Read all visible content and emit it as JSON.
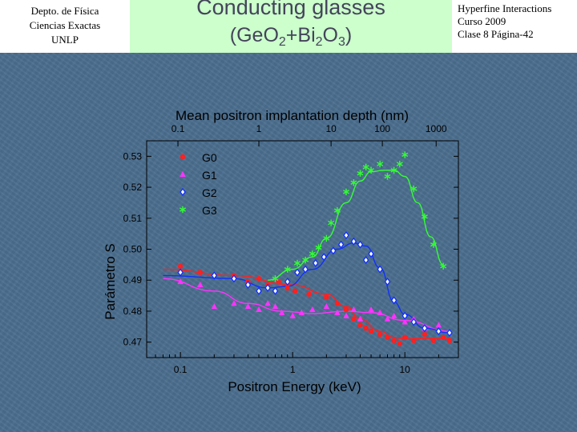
{
  "header": {
    "left_lines": [
      "Depto. de Física",
      "Ciencias Exactas",
      "UNLP"
    ],
    "title_line1": "Conducting glasses",
    "title_formula": {
      "a": "(GeO",
      "s1": "2",
      "b": "+Bi",
      "s2": "2",
      "c": "O",
      "s3": "3",
      "d": ")"
    },
    "right_lines": [
      "Hyperfine Interactions",
      "Curso 2009",
      "Clase 8  Página-42"
    ]
  },
  "colors": {
    "background": "#4b6e8e",
    "title_band": "#ccffcc",
    "G0": "#ff2020",
    "G1": "#ff33ff",
    "G2": "#1030ff",
    "G3": "#33ff33"
  },
  "chart_data": {
    "type": "scatter",
    "title": "Mean positron implantation depth (nm)",
    "xlabel": "Positron Energy (keV)",
    "ylabel": "Parámetro S",
    "xscale": "log",
    "xlim": [
      0.05,
      30
    ],
    "ylim": [
      0.465,
      0.535
    ],
    "x_ticks": [
      0.1,
      1,
      10
    ],
    "x_tick_labels": [
      "0.1",
      "1",
      "10"
    ],
    "y_ticks": [
      0.47,
      0.48,
      0.49,
      0.5,
      0.51,
      0.52,
      0.53
    ],
    "y_tick_labels": [
      "0.47",
      "0.48",
      "0.49",
      "0.50",
      "0.51",
      "0.52",
      "0.53"
    ],
    "top_axis": {
      "label": "Mean positron implantation depth (nm)",
      "ticks_nm": [
        0.1,
        1,
        10,
        100,
        1000
      ],
      "tick_labels": [
        "0.1",
        "1",
        "10",
        "100",
        "1000"
      ],
      "at_energy_keV": [
        0.095,
        0.5,
        2.2,
        6.3,
        19.0
      ]
    },
    "legend_position": "top-left",
    "series": [
      {
        "name": "G0",
        "marker": "circle",
        "x": [
          0.1,
          0.15,
          0.3,
          0.4,
          0.5,
          0.6,
          0.75,
          0.9,
          1.05,
          1.4,
          2.0,
          2.5,
          3.0,
          3.5,
          4.0,
          4.5,
          5.0,
          6.0,
          7.0,
          8.0,
          9.0,
          10.0,
          12.0,
          15.0,
          18.0,
          22.0,
          25.0
        ],
        "y": [
          0.4945,
          0.4925,
          0.4915,
          0.4895,
          0.4905,
          0.4885,
          0.4895,
          0.4875,
          0.4865,
          0.4855,
          0.4845,
          0.4825,
          0.4805,
          0.4775,
          0.4755,
          0.4745,
          0.4735,
          0.4725,
          0.4715,
          0.4705,
          0.4695,
          0.4715,
          0.4705,
          0.4725,
          0.4705,
          0.4715,
          0.4705
        ],
        "fit_x": [
          0.07,
          0.3,
          1.0,
          2.0,
          3.0,
          4.0,
          6.0,
          8.0,
          10.0,
          15.0,
          25.0
        ],
        "fit_y": [
          0.4935,
          0.4915,
          0.4885,
          0.4855,
          0.4815,
          0.4775,
          0.4735,
          0.4715,
          0.471,
          0.4712,
          0.4712
        ]
      },
      {
        "name": "G1",
        "marker": "triangle",
        "x": [
          0.1,
          0.15,
          0.2,
          0.3,
          0.4,
          0.5,
          0.6,
          0.7,
          0.8,
          1.0,
          1.2,
          1.5,
          2.0,
          2.5,
          3.0,
          3.5,
          4.0,
          5.0,
          6.0,
          7.0,
          8.0,
          10.0,
          12.0,
          15.0,
          20.0
        ],
        "y": [
          0.4895,
          0.4885,
          0.4815,
          0.4825,
          0.4815,
          0.4805,
          0.4825,
          0.4815,
          0.4795,
          0.4785,
          0.4795,
          0.4805,
          0.4815,
          0.4795,
          0.4785,
          0.4805,
          0.4775,
          0.4805,
          0.4795,
          0.4775,
          0.4785,
          0.4765,
          0.4775,
          0.4745,
          0.4755
        ],
        "fit_x": [
          0.07,
          0.2,
          0.4,
          0.8,
          1.5,
          3.0,
          5.0,
          10.0,
          25.0
        ],
        "fit_y": [
          0.4905,
          0.4865,
          0.4825,
          0.48,
          0.4792,
          0.48,
          0.4795,
          0.477,
          0.4735
        ]
      },
      {
        "name": "G2",
        "marker": "diamond",
        "x": [
          0.1,
          0.2,
          0.3,
          0.4,
          0.5,
          0.6,
          0.7,
          0.9,
          1.1,
          1.3,
          1.6,
          1.9,
          2.3,
          2.7,
          3.0,
          3.5,
          4.0,
          4.5,
          5.0,
          6.0,
          7.0,
          8.0,
          10.0,
          12.0,
          15.0,
          20.0,
          25.0
        ],
        "y": [
          0.4925,
          0.4915,
          0.4905,
          0.4885,
          0.4865,
          0.4875,
          0.4865,
          0.4895,
          0.4925,
          0.4935,
          0.4955,
          0.4975,
          0.4995,
          0.5015,
          0.5045,
          0.5025,
          0.5015,
          0.4965,
          0.4985,
          0.4935,
          0.4895,
          0.4835,
          0.4785,
          0.4765,
          0.4745,
          0.4735,
          0.473
        ],
        "fit_x": [
          0.07,
          0.3,
          0.6,
          0.9,
          1.5,
          2.5,
          3.5,
          4.5,
          6.0,
          8.0,
          10.0,
          15.0,
          25.0
        ],
        "fit_y": [
          0.4915,
          0.4905,
          0.4875,
          0.488,
          0.4935,
          0.5,
          0.502,
          0.501,
          0.494,
          0.483,
          0.479,
          0.4745,
          0.473
        ]
      },
      {
        "name": "G3",
        "marker": "star",
        "x": [
          0.7,
          0.9,
          1.1,
          1.3,
          1.5,
          1.7,
          2.0,
          2.2,
          2.5,
          3.0,
          3.5,
          4.0,
          4.5,
          5.0,
          6.0,
          7.0,
          8.0,
          9.0,
          10.0,
          12.0,
          15.0,
          18.0,
          22.0
        ],
        "y": [
          0.4905,
          0.4935,
          0.4955,
          0.4965,
          0.4985,
          0.5005,
          0.5035,
          0.5085,
          0.5125,
          0.5185,
          0.5215,
          0.5245,
          0.5265,
          0.5255,
          0.5275,
          0.5235,
          0.5255,
          0.5275,
          0.5305,
          0.5195,
          0.5105,
          0.5015,
          0.4945
        ],
        "fit_x": [
          0.6,
          1.0,
          1.5,
          2.0,
          3.0,
          4.0,
          5.0,
          6.5,
          8.0,
          10.0,
          13.0,
          17.0,
          22.0
        ],
        "fit_y": [
          0.49,
          0.4935,
          0.4975,
          0.5035,
          0.515,
          0.522,
          0.525,
          0.5255,
          0.5255,
          0.5235,
          0.515,
          0.504,
          0.495
        ]
      }
    ]
  }
}
